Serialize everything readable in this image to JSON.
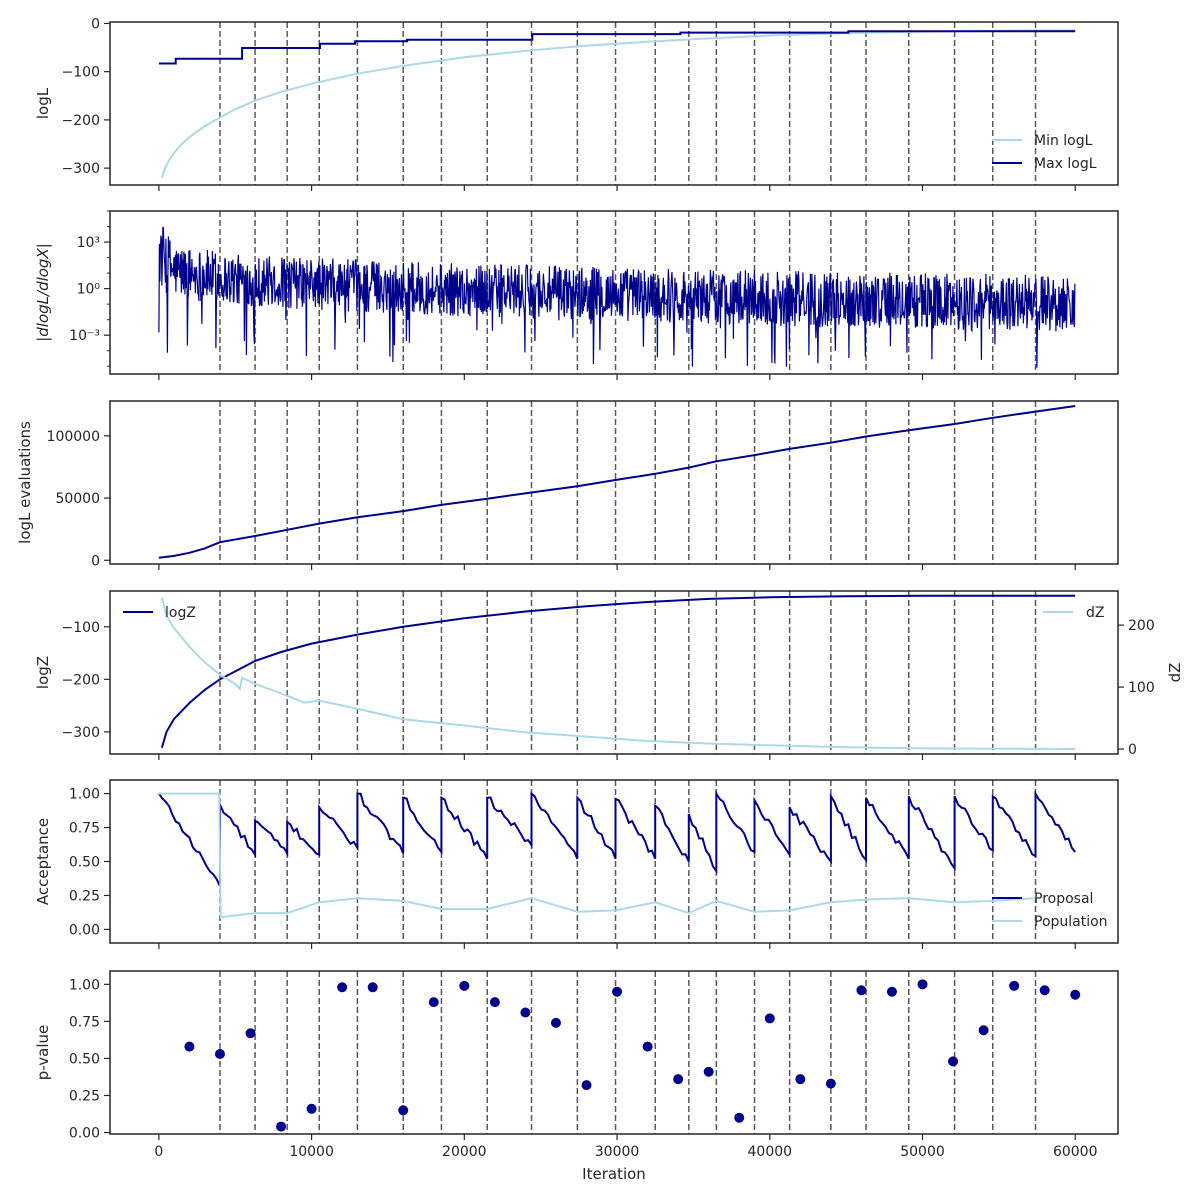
{
  "colors": {
    "dark": "#00008b",
    "light": "#add8e6",
    "vline": "#595959",
    "axis": "#262626"
  },
  "shared_x": {
    "label": "Iteration",
    "lim": [
      -3200,
      62800
    ],
    "ticks": [
      0,
      10000,
      20000,
      30000,
      40000,
      50000,
      60000
    ],
    "tick_labels": [
      "0",
      "10000",
      "20000",
      "30000",
      "40000",
      "50000",
      "60000"
    ],
    "vlines": [
      4000,
      6300,
      8400,
      10500,
      13000,
      16000,
      18500,
      21500,
      24400,
      27400,
      29900,
      32500,
      34700,
      36500,
      39000,
      41300,
      44000,
      46300,
      49100,
      52100,
      54600,
      57400
    ]
  },
  "chart_data": [
    {
      "type": "line",
      "ylabel": "logL",
      "ylim": [
        -335,
        3
      ],
      "yticks": [
        0,
        -100,
        -200,
        -300
      ],
      "ytick_labels": [
        "0",
        "−100",
        "−200",
        "−300"
      ],
      "legend": "bottom-right",
      "series": [
        {
          "name": "Min logL",
          "color": "light",
          "x": [
            200,
            400,
            700,
            1000,
            1500,
            2000,
            2500,
            3000,
            4000,
            5000,
            6300,
            8000,
            10000,
            13000,
            16000,
            20000,
            24000,
            28000,
            32000,
            36000,
            40000,
            45000,
            50000,
            55000,
            60000
          ],
          "y": [
            -320,
            -300,
            -282,
            -268,
            -250,
            -236,
            -224,
            -213,
            -195,
            -178,
            -160,
            -142,
            -125,
            -104,
            -88,
            -70,
            -57,
            -46,
            -38,
            -31,
            -25,
            -20,
            -17,
            -15,
            -14
          ]
        },
        {
          "name": "Max logL",
          "color": "dark",
          "step": true,
          "x": [
            0,
            1000,
            1100,
            5300,
            5450,
            10400,
            10550,
            12700,
            12850,
            16100,
            16250,
            24300,
            24450,
            34000,
            34150,
            45000,
            45150,
            60000
          ],
          "y": [
            -83,
            -83,
            -73,
            -73,
            -51,
            -51,
            -42,
            -42,
            -37,
            -37,
            -34,
            -34,
            -22,
            -22,
            -19,
            -19,
            -16,
            -16
          ]
        }
      ]
    },
    {
      "type": "line",
      "ylabel": "|dlogL/dlogX|",
      "yscale": "log",
      "ylim_log10": [
        -5.5,
        5.0
      ],
      "yticks_log10": [
        3,
        0,
        -3
      ],
      "ytick_labels": [
        "10³",
        "10⁰",
        "10⁻³"
      ],
      "series": [
        {
          "name": "",
          "color": "dark",
          "noisy": true,
          "envelope_x": [
            0,
            1000,
            5000,
            10000,
            20000,
            30000,
            40000,
            50000,
            60000
          ],
          "envelope_high_log10": [
            4.6,
            2.9,
            2.2,
            2.0,
            1.6,
            1.4,
            1.2,
            1.0,
            0.9
          ],
          "envelope_low_log10": [
            0.0,
            -0.6,
            -1.1,
            -1.4,
            -1.8,
            -2.1,
            -2.4,
            -2.6,
            -2.8
          ],
          "spike_min_log10": -5.2
        }
      ]
    },
    {
      "type": "line",
      "ylabel": "logL evaluations",
      "ylim": [
        -3000,
        128000
      ],
      "yticks": [
        0,
        50000,
        100000
      ],
      "ytick_labels": [
        "0",
        "50000",
        "100000"
      ],
      "series": [
        {
          "name": "",
          "color": "dark",
          "x": [
            0,
            1000,
            2000,
            3000,
            4000,
            6300,
            8400,
            10500,
            13000,
            16000,
            18500,
            21500,
            24400,
            27400,
            29900,
            32500,
            34700,
            36500,
            39000,
            41300,
            44000,
            46300,
            49100,
            52100,
            54600,
            57400,
            60000
          ],
          "y": [
            2000,
            3500,
            6000,
            9500,
            14500,
            19500,
            24500,
            29500,
            34500,
            39500,
            44500,
            49500,
            54500,
            59500,
            64500,
            69500,
            74500,
            79500,
            84500,
            89500,
            94500,
            99500,
            104500,
            109500,
            114500,
            119500,
            124000
          ]
        }
      ]
    },
    {
      "type": "line",
      "ylabel": "logZ",
      "ylim": [
        -342,
        -32
      ],
      "yticks": [
        -100,
        -200,
        -300
      ],
      "ytick_labels": [
        "−100",
        "−200",
        "−300"
      ],
      "ylabel_right": "dZ",
      "ylim_right": [
        -8,
        255
      ],
      "yticks_right": [
        0,
        100,
        200
      ],
      "ytick_labels_right": [
        "0",
        "100",
        "200"
      ],
      "legend": "top-left",
      "legend_right": "top-right",
      "series": [
        {
          "name": "logZ",
          "color": "dark",
          "axis": "left",
          "x": [
            200,
            500,
            1000,
            1500,
            2000,
            3000,
            4000,
            5000,
            6300,
            8000,
            10000,
            13000,
            16000,
            20000,
            24000,
            28000,
            32000,
            36000,
            40000,
            45000,
            50000,
            55000,
            60000
          ],
          "y": [
            -330,
            -300,
            -275,
            -260,
            -245,
            -220,
            -200,
            -185,
            -165,
            -148,
            -132,
            -115,
            -100,
            -84,
            -71,
            -61,
            -53,
            -47,
            -44,
            -42,
            -41,
            -41,
            -41
          ]
        },
        {
          "name": "dZ",
          "color": "light",
          "axis": "right",
          "x": [
            200,
            500,
            1000,
            1500,
            2000,
            3000,
            4000,
            5000,
            5300,
            5450,
            6300,
            8000,
            9500,
            10500,
            13000,
            16000,
            20000,
            24000,
            28000,
            32000,
            36000,
            40000,
            45000,
            50000,
            55000,
            60000
          ],
          "y": [
            245,
            215,
            195,
            180,
            165,
            140,
            120,
            105,
            97,
            115,
            105,
            90,
            75,
            78,
            65,
            48,
            38,
            27,
            20,
            13,
            9,
            6,
            3,
            1,
            0.5,
            0
          ]
        }
      ]
    },
    {
      "type": "line",
      "ylabel": "Acceptance",
      "ylim": [
        -0.1,
        1.1
      ],
      "yticks": [
        1.0,
        0.75,
        0.5,
        0.25,
        0.0
      ],
      "ytick_labels": [
        "1.00",
        "0.75",
        "0.50",
        "0.25",
        "0.00"
      ],
      "legend": "bottom-right",
      "series": [
        {
          "name": "Proposal",
          "color": "dark",
          "sawtooth": true,
          "starts": [
            0,
            4000,
            6300,
            8400,
            10500,
            13000,
            16000,
            18500,
            21500,
            24400,
            27400,
            29900,
            32500,
            34700,
            36500,
            39000,
            41300,
            44000,
            46300,
            49100,
            52100,
            54600,
            57400
          ],
          "peaks": [
            1.0,
            0.92,
            0.8,
            0.79,
            0.9,
            1.0,
            0.97,
            0.97,
            0.97,
            1.0,
            0.97,
            0.96,
            0.91,
            0.85,
            1.0,
            0.95,
            0.9,
            0.98,
            0.97,
            0.98,
            0.98,
            0.98,
            1.0
          ],
          "troughs": [
            0.32,
            0.55,
            0.56,
            0.55,
            0.6,
            0.56,
            0.57,
            0.52,
            0.62,
            0.52,
            0.52,
            0.52,
            0.5,
            0.43,
            0.57,
            0.55,
            0.5,
            0.51,
            0.52,
            0.45,
            0.58,
            0.54,
            0.57
          ]
        },
        {
          "name": "Population",
          "color": "light",
          "x": [
            0,
            3950,
            4050,
            6300,
            8400,
            10500,
            13000,
            16000,
            18500,
            21500,
            24400,
            27400,
            29900,
            32500,
            34700,
            36500,
            39000,
            41300,
            44000,
            46300,
            49100,
            52100,
            54600,
            57400
          ],
          "y": [
            1.0,
            1.0,
            0.09,
            0.12,
            0.12,
            0.2,
            0.23,
            0.21,
            0.15,
            0.15,
            0.23,
            0.13,
            0.14,
            0.2,
            0.12,
            0.21,
            0.13,
            0.14,
            0.2,
            0.22,
            0.23,
            0.2,
            0.21,
            0.23
          ]
        }
      ]
    },
    {
      "type": "scatter",
      "ylabel": "p-value",
      "xlabel": "Iteration",
      "ylim": [
        -0.01,
        1.09
      ],
      "yticks": [
        1.0,
        0.75,
        0.5,
        0.25,
        0.0
      ],
      "ytick_labels": [
        "1.00",
        "0.75",
        "0.50",
        "0.25",
        "0.00"
      ],
      "series": [
        {
          "name": "",
          "color": "dark",
          "x": [
            2000,
            4000,
            6000,
            8000,
            10000,
            12000,
            14000,
            16000,
            18000,
            20000,
            22000,
            24000,
            26000,
            28000,
            30000,
            32000,
            34000,
            36000,
            38000,
            40000,
            42000,
            44000,
            46000,
            48000,
            50000,
            52000,
            54000,
            56000,
            58000,
            60000
          ],
          "y": [
            0.58,
            0.53,
            0.67,
            0.04,
            0.16,
            0.98,
            0.98,
            0.15,
            0.88,
            0.99,
            0.88,
            0.81,
            0.74,
            0.32,
            0.95,
            0.58,
            0.36,
            0.41,
            0.1,
            0.77,
            0.36,
            0.33,
            0.96,
            0.95,
            1.0,
            0.48,
            0.69,
            0.99,
            0.96,
            0.93
          ]
        }
      ]
    }
  ]
}
